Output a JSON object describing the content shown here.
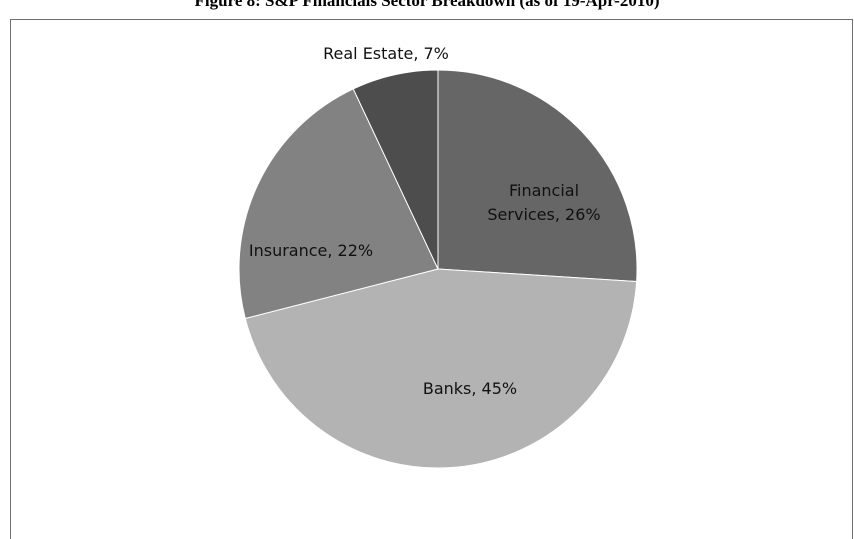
{
  "title": "Figure 8: S&P Financials Sector Breakdown (as of 19-Apr-2010)",
  "chart_data": {
    "type": "pie",
    "title": "Figure 8: S&P Financials Sector Breakdown (as of 19-Apr-2010)",
    "slices": [
      {
        "name": "Financial Services",
        "value": 26,
        "color": "#666666",
        "label_lines": [
          "Financial",
          "Services, 26%"
        ]
      },
      {
        "name": "Banks",
        "value": 45,
        "color": "#b3b3b3",
        "label_lines": [
          "Banks, 45%"
        ]
      },
      {
        "name": "Insurance",
        "value": 22,
        "color": "#828282",
        "label_lines": [
          "Insurance, 22%"
        ]
      },
      {
        "name": "Real Estate",
        "value": 7,
        "color": "#4d4d4d",
        "label_lines": [
          "Real Estate,  7%"
        ]
      }
    ],
    "start_angle_deg": 0,
    "direction": "clockwise",
    "legend": "none"
  }
}
